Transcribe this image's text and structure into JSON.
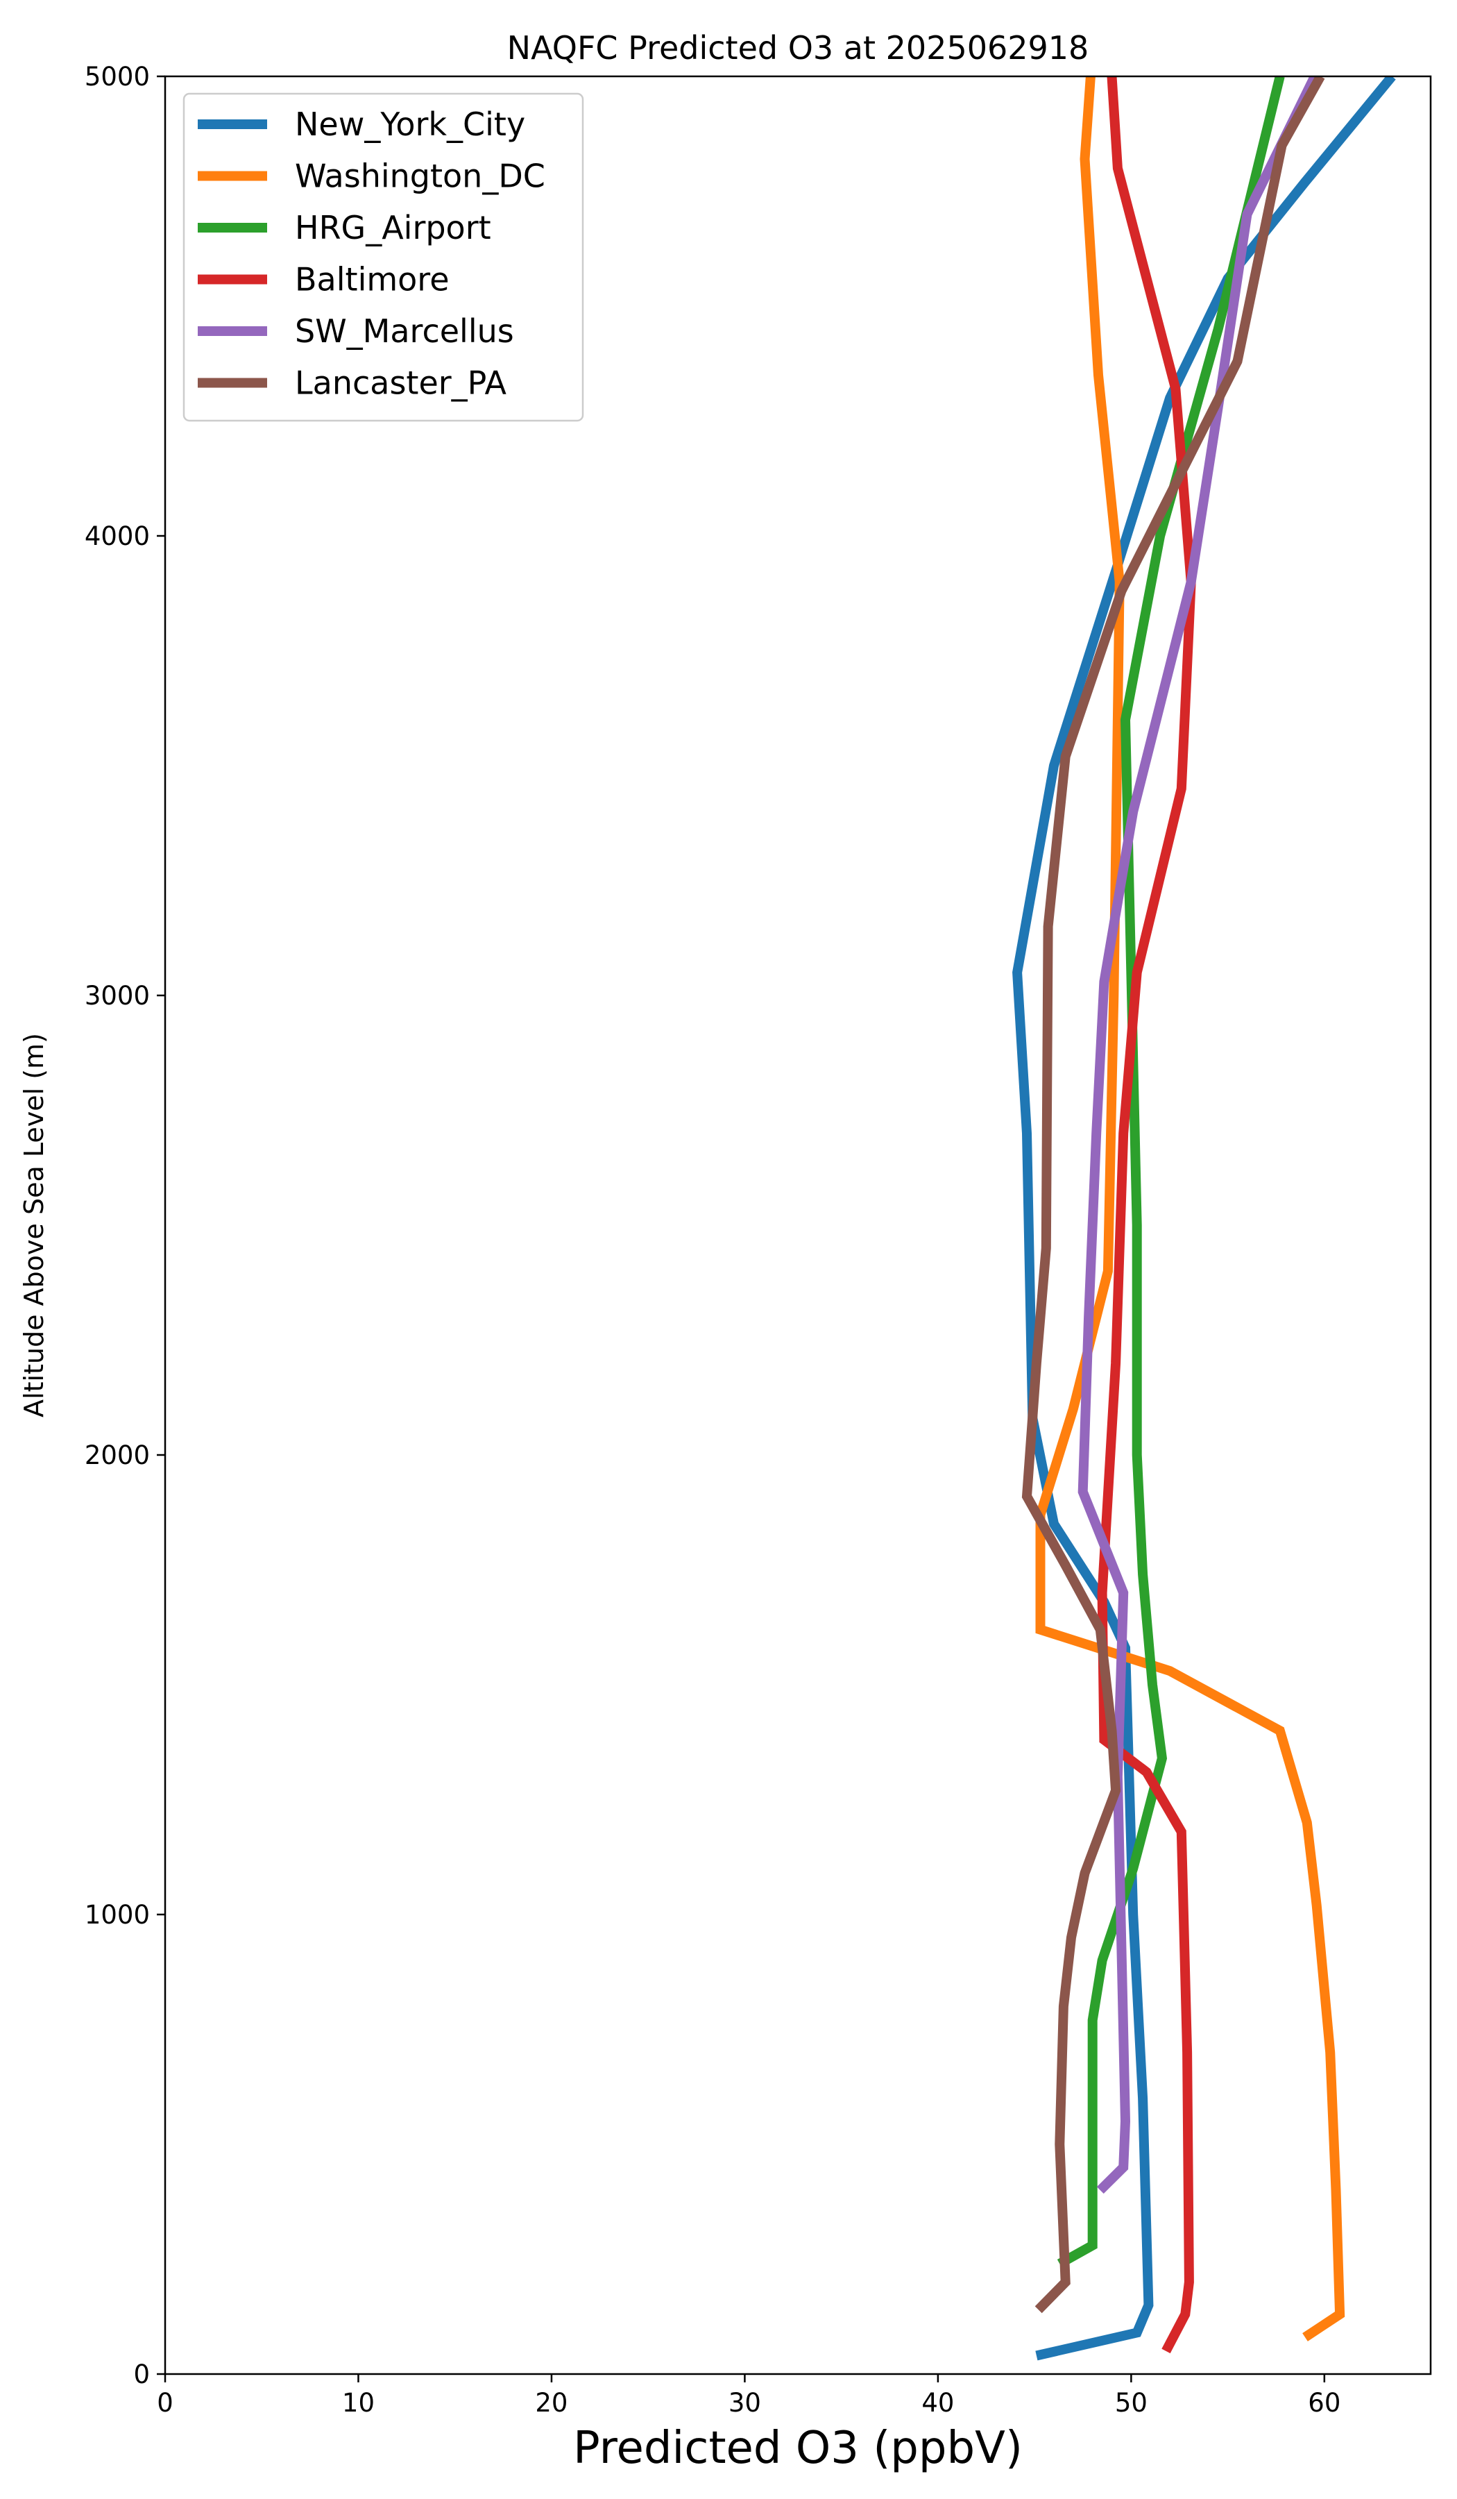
{
  "chart_data": {
    "type": "line",
    "title": "NAQFC Predicted O3 at 2025062918",
    "xlabel": "Predicted O3 (ppbV)",
    "ylabel": "Altitude Above Sea Level (m)",
    "xlim": [
      0,
      65.5
    ],
    "ylim": [
      0,
      5000
    ],
    "xticks": [
      0,
      10,
      20,
      30,
      40,
      50,
      60
    ],
    "yticks": [
      0,
      1000,
      2000,
      3000,
      4000,
      5000
    ],
    "grid": false,
    "legend_position": "upper-left",
    "series": [
      {
        "name": "New_York_City",
        "color": "#1f77b4",
        "points": [
          [
            45.1,
            40
          ],
          [
            50.3,
            90
          ],
          [
            50.9,
            150
          ],
          [
            50.6,
            600
          ],
          [
            50.1,
            1000
          ],
          [
            49.7,
            1580
          ],
          [
            48.6,
            1680
          ],
          [
            46.0,
            1850
          ],
          [
            44.9,
            2080
          ],
          [
            44.6,
            2700
          ],
          [
            44.1,
            3050
          ],
          [
            46.0,
            3500
          ],
          [
            49.4,
            3950
          ],
          [
            52.0,
            4300
          ],
          [
            55.0,
            4560
          ],
          [
            59.0,
            4770
          ],
          [
            63.5,
            5000
          ]
        ]
      },
      {
        "name": "Washington_DC",
        "color": "#ff7f0e",
        "points": [
          [
            59.0,
            80
          ],
          [
            60.8,
            130
          ],
          [
            60.6,
            400
          ],
          [
            60.3,
            700
          ],
          [
            59.6,
            1020
          ],
          [
            59.1,
            1200
          ],
          [
            57.7,
            1400
          ],
          [
            52.0,
            1530
          ],
          [
            45.3,
            1620
          ],
          [
            45.3,
            1870
          ],
          [
            47.0,
            2100
          ],
          [
            48.8,
            2400
          ],
          [
            49.1,
            3000
          ],
          [
            49.4,
            3900
          ],
          [
            48.3,
            4350
          ],
          [
            47.6,
            4820
          ],
          [
            47.9,
            5000
          ]
        ]
      },
      {
        "name": "HRG_Airport",
        "color": "#2ca02c",
        "points": [
          [
            46.3,
            240
          ],
          [
            48.0,
            280
          ],
          [
            48.0,
            770
          ],
          [
            48.5,
            900
          ],
          [
            50.1,
            1100
          ],
          [
            51.6,
            1340
          ],
          [
            51.1,
            1500
          ],
          [
            50.6,
            1740
          ],
          [
            50.3,
            2000
          ],
          [
            50.3,
            2500
          ],
          [
            49.7,
            3600
          ],
          [
            51.5,
            4000
          ],
          [
            54.5,
            4450
          ],
          [
            57.7,
            5000
          ]
        ]
      },
      {
        "name": "Baltimore",
        "color": "#d62728",
        "points": [
          [
            51.8,
            50
          ],
          [
            52.8,
            130
          ],
          [
            53.0,
            200
          ],
          [
            52.9,
            700
          ],
          [
            52.7,
            1020
          ],
          [
            52.6,
            1180
          ],
          [
            50.8,
            1310
          ],
          [
            48.6,
            1380
          ],
          [
            48.5,
            1700
          ],
          [
            49.2,
            2200
          ],
          [
            49.6,
            2700
          ],
          [
            50.3,
            3050
          ],
          [
            52.6,
            3450
          ],
          [
            53.1,
            3900
          ],
          [
            52.3,
            4320
          ],
          [
            49.3,
            4800
          ],
          [
            49.0,
            5000
          ]
        ]
      },
      {
        "name": "SW_Marcellus",
        "color": "#9467bd",
        "points": [
          [
            48.4,
            400
          ],
          [
            49.6,
            450
          ],
          [
            49.7,
            550
          ],
          [
            49.3,
            1300
          ],
          [
            49.6,
            1700
          ],
          [
            47.5,
            1920
          ],
          [
            47.8,
            2300
          ],
          [
            48.2,
            2700
          ],
          [
            48.6,
            3030
          ],
          [
            50.1,
            3400
          ],
          [
            53.1,
            3900
          ],
          [
            54.5,
            4280
          ],
          [
            56.0,
            4700
          ],
          [
            59.5,
            5000
          ]
        ]
      },
      {
        "name": "Lancaster_PA",
        "color": "#8c564b",
        "points": [
          [
            45.2,
            140
          ],
          [
            46.6,
            200
          ],
          [
            46.3,
            500
          ],
          [
            46.5,
            800
          ],
          [
            46.9,
            950
          ],
          [
            47.6,
            1090
          ],
          [
            49.2,
            1270
          ],
          [
            49.0,
            1400
          ],
          [
            48.4,
            1620
          ],
          [
            46.6,
            1760
          ],
          [
            44.6,
            1910
          ],
          [
            45.1,
            2200
          ],
          [
            45.6,
            2450
          ],
          [
            45.7,
            3150
          ],
          [
            46.6,
            3520
          ],
          [
            49.5,
            3880
          ],
          [
            55.5,
            4380
          ],
          [
            57.8,
            4850
          ],
          [
            59.8,
            5000
          ]
        ]
      }
    ]
  }
}
